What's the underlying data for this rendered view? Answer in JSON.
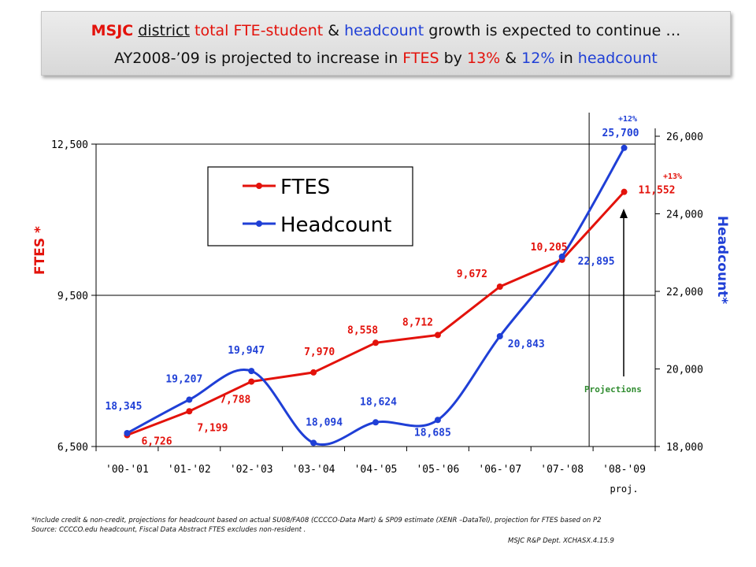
{
  "title": {
    "line1": {
      "org": "MSJC",
      "district": "district",
      "fte_part": "total FTE-student",
      "amp": "&",
      "headcount_part": "headcount",
      "rest": "growth is expected to continue …"
    },
    "line2": {
      "lead": "AY2008-’09 is projected to increase in",
      "ftes": "FTES",
      "by": "by",
      "ftes_pct": "13%",
      "amp": "&",
      "hc_pct": "12%",
      "in": "in",
      "headcount": "headcount"
    }
  },
  "colors": {
    "ftes": "#e3120b",
    "headcount": "#1f3fd6",
    "projections": "#2e8b2e"
  },
  "chart_data": {
    "type": "line",
    "categories": [
      "'00-'01",
      "'01-'02",
      "'02-'03",
      "'03-'04",
      "'04-'05",
      "'05-'06",
      "'06-'07",
      "'07-'08",
      "'08-'09"
    ],
    "series": [
      {
        "name": "FTES",
        "axis": "left",
        "values": [
          6726,
          7199,
          7788,
          7970,
          8558,
          8712,
          9672,
          10205,
          11552
        ],
        "labels": [
          "6,726",
          "7,199",
          "7,788",
          "7,970",
          "8,558",
          "8,712",
          "9,672",
          "10,205",
          "11,552"
        ]
      },
      {
        "name": "Headcount",
        "axis": "right",
        "values": [
          18345,
          19207,
          19947,
          18094,
          18624,
          18685,
          20843,
          22895,
          25700
        ],
        "labels": [
          "18,345",
          "19,207",
          "19,947",
          "18,094",
          "18,624",
          "18,685",
          "20,843",
          "22,895",
          "25,700"
        ]
      }
    ],
    "ylabel": "FTES *",
    "y2label": "Headcount*",
    "ylim": [
      6500,
      12500
    ],
    "yticks": [
      6500,
      9500,
      12500
    ],
    "ytick_labels": [
      "6,500",
      "9,500",
      "12,500"
    ],
    "y2lim": [
      18000,
      26000
    ],
    "y2ticks": [
      18000,
      20000,
      22000,
      24000,
      26000
    ],
    "y2tick_labels": [
      "18,000",
      "20,000",
      "22,000",
      "24,000",
      "26,000"
    ],
    "legend_position": "top-left",
    "projection_label": "Projections",
    "proj_tag": "proj.",
    "growth_ftes": "+13%",
    "growth_headcount": "+12%",
    "grid": "horizontal at left ticks"
  },
  "footnote": {
    "line1": "*Include credit & non-credit, projections for headcount based on actual SU08/FA08 (CCCCO-Data Mart) & SP09 estimate (XENR –DataTel), projection for FTES based on P2",
    "line2": "Source: CCCCO.edu headcount, Fiscal Data Abstract FTES excludes non-resident .",
    "credit": "MSJC R&P Dept. XCHASX.4.15.9"
  }
}
